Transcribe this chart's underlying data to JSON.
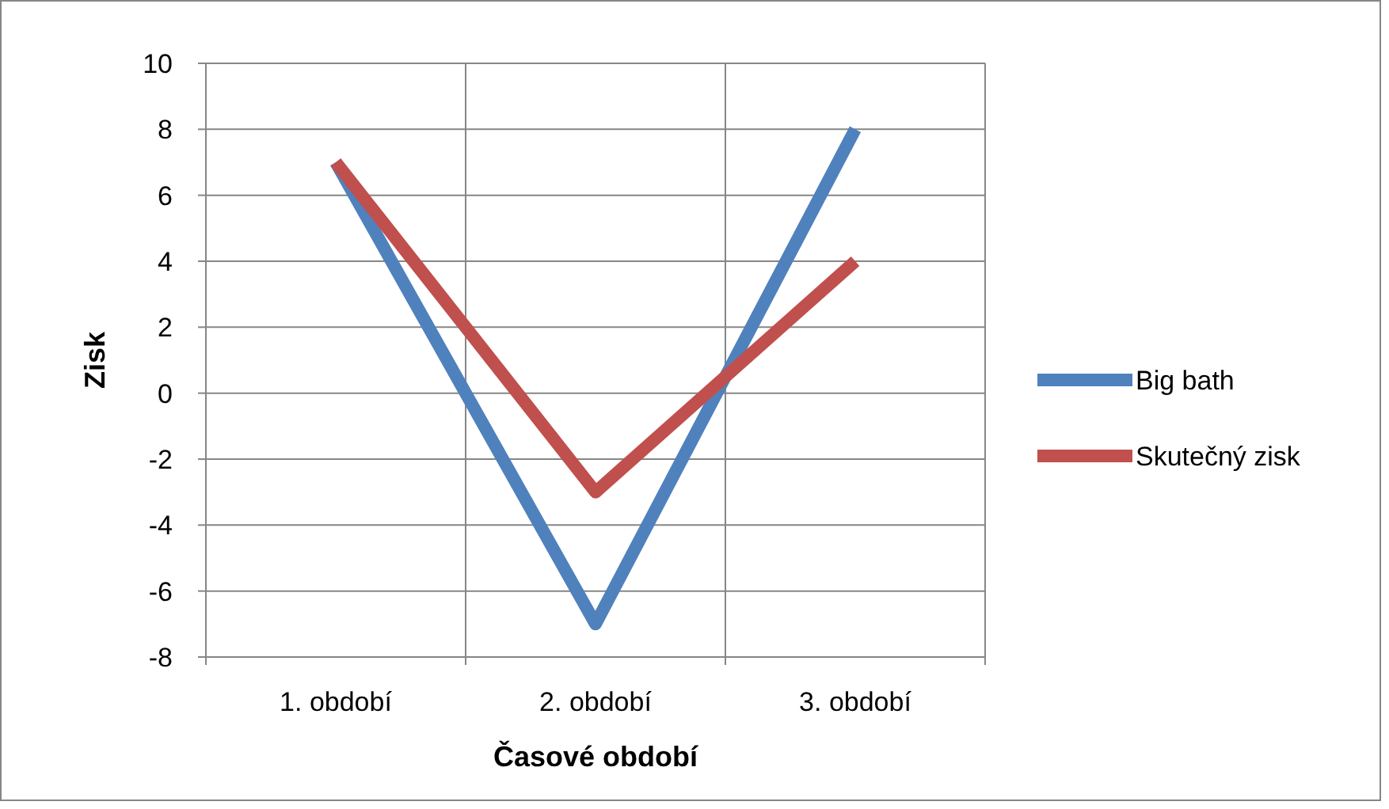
{
  "chart_data": {
    "type": "line",
    "xlabel": "Časové období",
    "ylabel": "Zisk",
    "categories": [
      "1. období",
      "2. období",
      "3. období"
    ],
    "series": [
      {
        "name": "Big bath",
        "color": "#4f81bd",
        "values": [
          7,
          -7,
          8
        ]
      },
      {
        "name": "Skutečný zisk",
        "color": "#c0504d",
        "values": [
          7,
          -3,
          4
        ]
      }
    ],
    "ylim": [
      -8,
      10
    ],
    "yticks": [
      -8,
      -6,
      -4,
      -2,
      0,
      2,
      4,
      6,
      8,
      10
    ],
    "grid": true,
    "legend": "right",
    "marker": "none",
    "line_style": "solid"
  }
}
